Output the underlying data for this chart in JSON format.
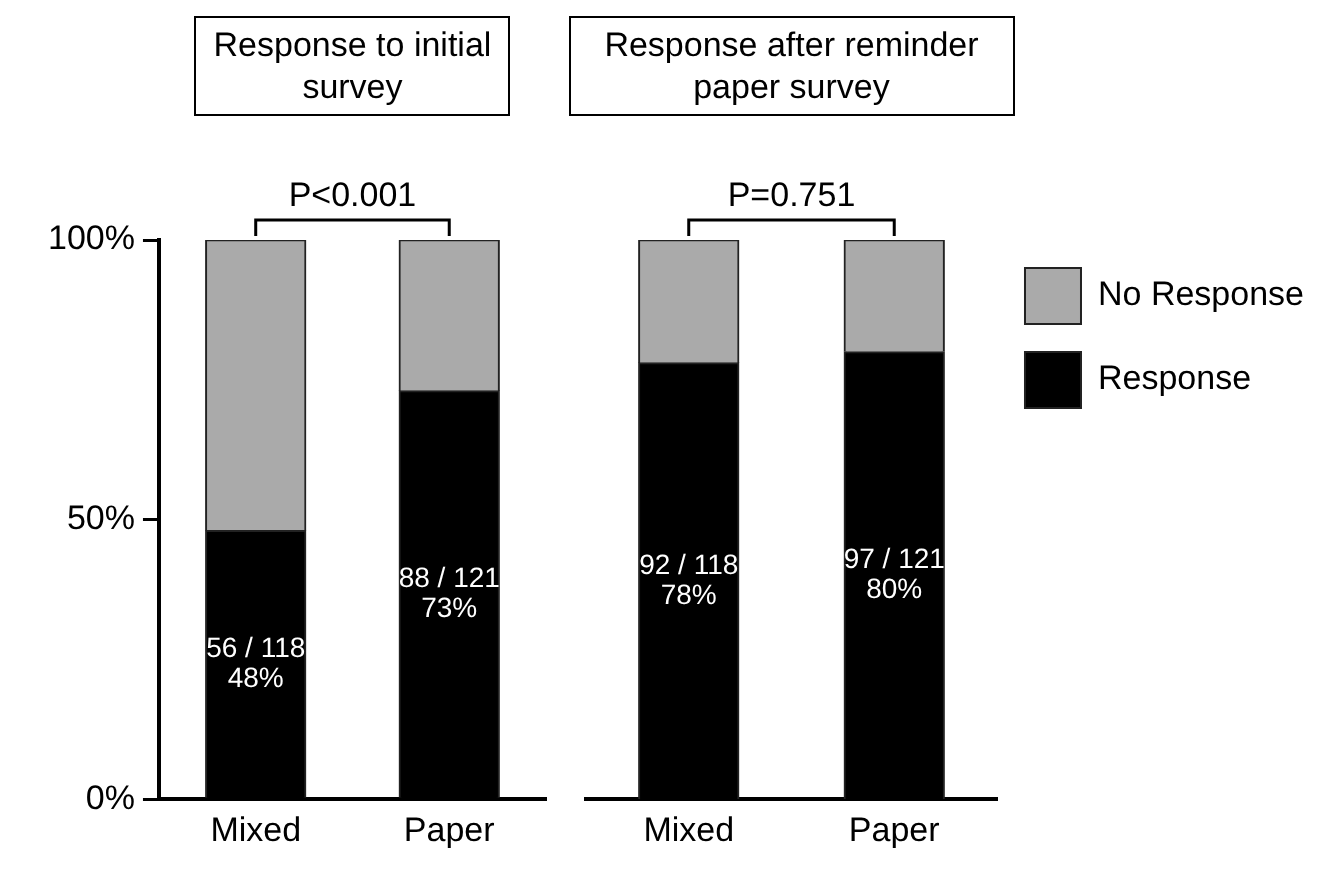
{
  "chart_data": [
    {
      "type": "bar",
      "title": "Response to initial survey",
      "categories": [
        "Mixed",
        "Paper"
      ],
      "stacked": true,
      "ylim": [
        0,
        100
      ],
      "yticks": [
        {
          "value": 0,
          "label": "0%"
        },
        {
          "value": 50,
          "label": "50%"
        },
        {
          "value": 100,
          "label": "100%"
        }
      ],
      "grid": false,
      "legend": false,
      "annotations": [
        "P<0.001"
      ],
      "series": [
        {
          "color": "#000000",
          "values": [
            48,
            73
          ],
          "value_labels": [
            "56 / 118\n48%",
            "88 / 121\n73%"
          ]
        },
        {
          "color": "#aaaaaa",
          "values": [
            52,
            27
          ]
        }
      ]
    },
    {
      "type": "bar",
      "title": "Response after reminder paper survey",
      "categories": [
        "Mixed",
        "Paper"
      ],
      "stacked": true,
      "ylim": [
        0,
        100
      ],
      "tick_labels": "x",
      "grid": false,
      "legend": "right",
      "annotations": [
        "P=0.751"
      ],
      "series": [
        {
          "name": "Response",
          "color": "#000000",
          "values": [
            78,
            80
          ],
          "value_labels": [
            "92 / 118\n78%",
            "97 / 121\n80%"
          ]
        },
        {
          "name": "No Response",
          "color": "#aaaaaa",
          "values": [
            22,
            20
          ]
        }
      ]
    }
  ]
}
